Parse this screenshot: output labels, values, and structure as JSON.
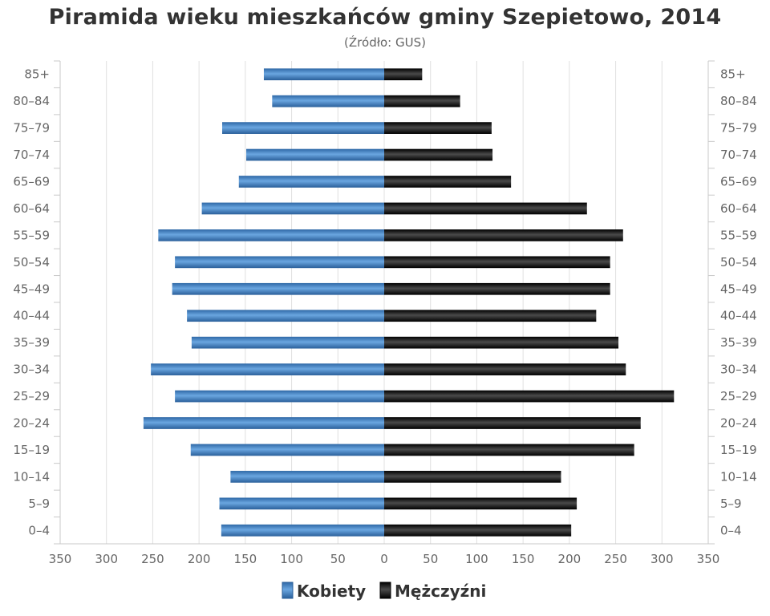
{
  "chart_data": {
    "type": "bar",
    "orientation": "horizontal-population-pyramid",
    "title": "Piramida wieku mieszkańców gminy Szepietowo, 2014",
    "subtitle": "(Źródło: GUS)",
    "categories": [
      "85+",
      "80–84",
      "75–79",
      "70–74",
      "65–69",
      "60–64",
      "55–59",
      "50–54",
      "45–49",
      "40–44",
      "35–39",
      "30–34",
      "25–29",
      "20–24",
      "15–19",
      "10–14",
      "5–9",
      "0–4"
    ],
    "series": [
      {
        "name": "Kobiety",
        "side": "left",
        "color": "#3f7fc0",
        "values": [
          130,
          121,
          175,
          149,
          157,
          197,
          244,
          226,
          229,
          213,
          208,
          252,
          226,
          260,
          209,
          166,
          178,
          176
        ]
      },
      {
        "name": "Mężczyźni",
        "side": "right",
        "color": "#1a1a1a",
        "values": [
          41,
          82,
          116,
          117,
          137,
          219,
          258,
          244,
          244,
          229,
          253,
          261,
          313,
          277,
          270,
          191,
          208,
          202
        ]
      }
    ],
    "xlim": [
      -350,
      350
    ],
    "xticks": [
      -350,
      -300,
      -250,
      -200,
      -150,
      -100,
      -50,
      0,
      50,
      100,
      150,
      200,
      250,
      300,
      350
    ],
    "xtick_labels": [
      "350",
      "300",
      "250",
      "200",
      "150",
      "100",
      "50",
      "0",
      "50",
      "100",
      "150",
      "200",
      "250",
      "300",
      "350"
    ],
    "grid": "vertical",
    "legend": "bottom-center"
  }
}
